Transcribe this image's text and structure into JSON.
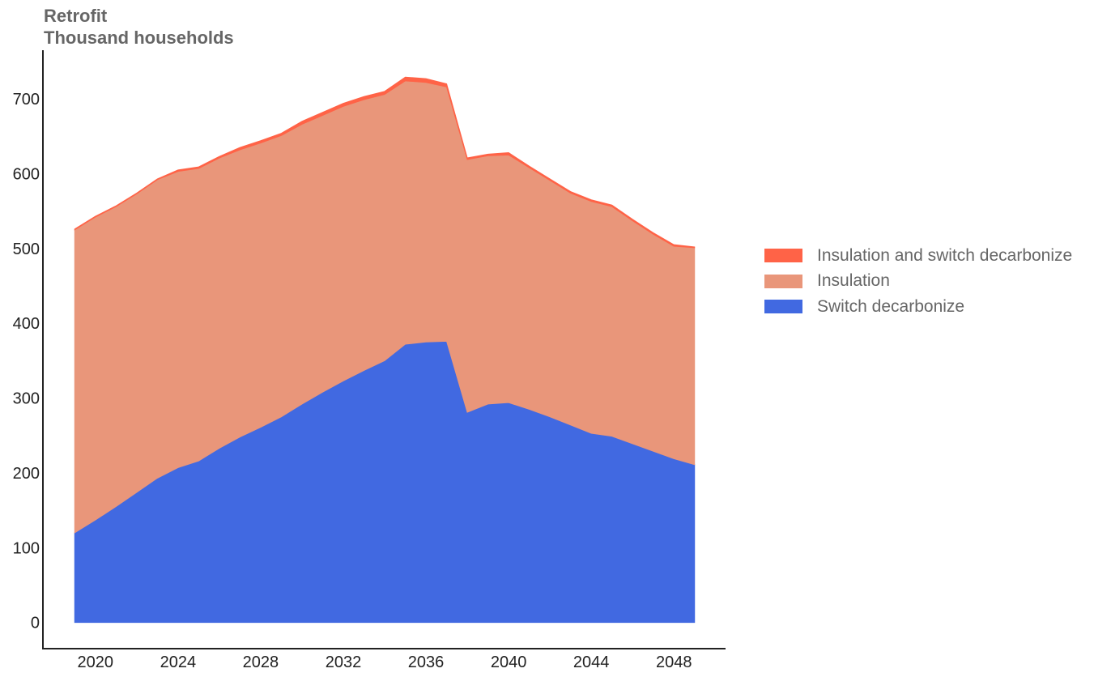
{
  "chart_data": {
    "type": "area",
    "stacked": true,
    "title": "Retrofit",
    "subtitle": "Thousand households",
    "xlabel": "",
    "ylabel": "",
    "xlim": [
      2017.5,
      2050.5
    ],
    "ylim": [
      -35,
      765
    ],
    "x_ticks": [
      2020,
      2024,
      2028,
      2032,
      2036,
      2040,
      2044,
      2048
    ],
    "y_ticks": [
      0,
      100,
      200,
      300,
      400,
      500,
      600,
      700
    ],
    "grid": false,
    "legend_position": "right",
    "x": [
      2019,
      2020,
      2021,
      2022,
      2023,
      2024,
      2025,
      2026,
      2027,
      2028,
      2029,
      2030,
      2031,
      2032,
      2033,
      2034,
      2035,
      2036,
      2037,
      2038,
      2039,
      2040,
      2041,
      2042,
      2043,
      2044,
      2045,
      2046,
      2047,
      2048,
      2049
    ],
    "series": [
      {
        "name": "Switch decarbonize",
        "color": "#4169E1",
        "values": [
          120,
          137,
          155,
          174,
          193,
          207,
          216,
          233,
          248,
          261,
          275,
          292,
          308,
          323,
          337,
          350,
          372,
          375,
          376,
          281,
          292,
          294,
          285,
          275,
          264,
          253,
          249,
          239,
          229,
          219,
          211
        ]
      },
      {
        "name": "Insulation",
        "color": "#E9967A",
        "values": [
          405,
          405,
          401,
          399,
          399,
          396,
          391,
          388,
          384,
          380,
          376,
          374,
          370,
          367,
          362,
          356,
          352,
          347,
          340,
          338,
          332,
          331,
          323,
          316,
          310,
          310,
          307,
          298,
          290,
          284,
          290
        ]
      },
      {
        "name": "Insulation and switch decarbonize",
        "color": "#FF6347",
        "values": [
          1,
          1,
          1,
          1,
          1,
          2,
          2,
          2,
          3,
          3,
          3,
          4,
          4,
          4,
          4,
          4,
          5,
          5,
          4,
          2,
          2,
          3,
          2,
          2,
          2,
          2,
          2,
          2,
          2,
          2,
          1
        ]
      }
    ]
  }
}
